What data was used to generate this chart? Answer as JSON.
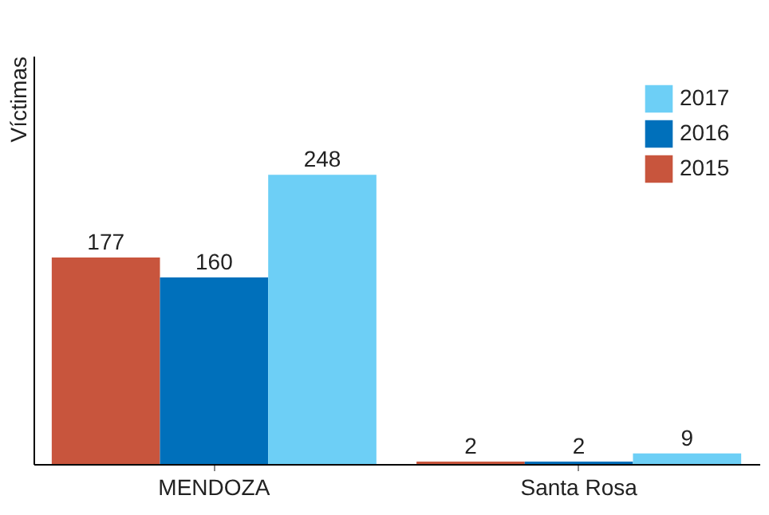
{
  "chart_data": {
    "type": "bar",
    "ylabel": "Víctimas",
    "categories": [
      "MENDOZA",
      "Santa Rosa"
    ],
    "series": [
      {
        "name": "2015",
        "color": "#c8553d",
        "values": [
          177,
          2
        ]
      },
      {
        "name": "2016",
        "color": "#0070bb",
        "values": [
          160,
          2
        ]
      },
      {
        "name": "2017",
        "color": "#6dcff6",
        "values": [
          248,
          9
        ]
      }
    ],
    "ylim": [
      0,
      350
    ],
    "data_labels": true,
    "legend": "top right",
    "grid": false,
    "tick_labels": "x"
  }
}
